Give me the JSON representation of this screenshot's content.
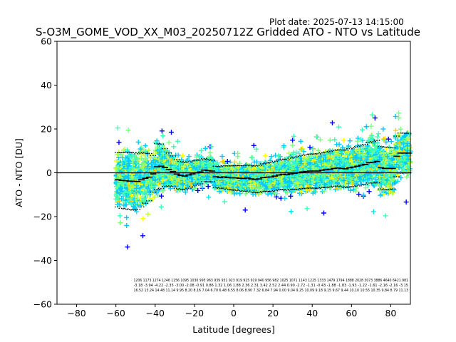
{
  "plot_date": "Plot date: 2025-07-13 14:15:00",
  "chart_data": {
    "type": "scatter",
    "title": "S-O3M_GOME_VOD_XX_M03_20250712Z Gridded ATO - NTO vs Latitude",
    "xlabel": "Latitude [degrees]",
    "ylabel": "ATO - NTO [DU]",
    "xlim": [
      -90,
      90
    ],
    "ylim": [
      -60,
      60
    ],
    "xticks": [
      -80,
      -60,
      -40,
      -20,
      0,
      20,
      40,
      60,
      80
    ],
    "yticks": [
      -60,
      -40,
      -20,
      0,
      20,
      40,
      60
    ],
    "grid": false,
    "legend": "none",
    "zero_line": 0,
    "marker": "+",
    "point_colors": [
      "#00c8ff",
      "#3cffb4",
      "#7dff7d",
      "#beff3c",
      "#ffff00",
      "#0000ff",
      "#00a8ff",
      "#00e5ee",
      "#ffd000"
    ],
    "lat_bins_center": [
      -59,
      -57,
      -55,
      -53,
      -51,
      -49,
      -47,
      -45,
      -43,
      -41,
      -39,
      -37,
      -35,
      -33,
      -31,
      -29,
      -27,
      -25,
      -23,
      -21,
      -19,
      -17,
      -15,
      -13,
      -11,
      -9,
      -7,
      -5,
      -3,
      -1,
      1,
      3,
      5,
      7,
      9,
      11,
      13,
      15,
      17,
      19,
      21,
      23,
      25,
      27,
      29,
      31,
      33,
      35,
      37,
      39,
      41,
      43,
      45,
      47,
      49,
      51,
      53,
      55,
      57,
      59,
      61,
      63,
      65,
      67,
      69,
      71,
      73,
      75,
      77,
      79,
      81,
      83,
      85,
      87,
      89
    ],
    "mean": [
      -3.2,
      -3.5,
      -3.6,
      -3.8,
      -3.9,
      -4.0,
      -3.2,
      -2.5,
      -2.0,
      -0.5,
      2.8,
      3.0,
      2.4,
      1.5,
      0.6,
      -0.6,
      -1.2,
      -1.5,
      -1.0,
      -0.5,
      0.0,
      0.4,
      1.2,
      1.0,
      0.8,
      -1.8,
      -2.1,
      -1.9,
      -2.2,
      -2.3,
      -2.3,
      -2.5,
      -2.6,
      -2.4,
      -2.8,
      -3.0,
      -2.8,
      -2.2,
      -2.0,
      -1.9,
      -1.5,
      -1.0,
      -0.7,
      -0.9,
      -0.5,
      -0.2,
      0.0,
      0.4,
      0.6,
      0.8,
      0.8,
      0.8,
      1.2,
      1.4,
      1.6,
      2.0,
      2.2,
      2.0,
      1.8,
      2.3,
      2.6,
      3.0,
      3.5,
      3.8,
      4.6,
      4.8,
      5.2,
      2.3,
      2.0,
      2.0,
      2.0,
      7.5,
      9.0,
      9.0,
      9.0
    ],
    "std": [
      16.5,
      17.0,
      17.2,
      17.4,
      17.5,
      16.9,
      16.5,
      15.2,
      14.4,
      11.1,
      14.0,
      13.5,
      11.5,
      10.0,
      9.4,
      8.8,
      8.5,
      8.2,
      8.0,
      7.9,
      7.6,
      7.3,
      7.0,
      6.8,
      6.5,
      6.4,
      6.6,
      6.8,
      7.1,
      7.3,
      7.5,
      7.6,
      7.8,
      7.9,
      8.0,
      8.1,
      8.2,
      8.4,
      8.6,
      8.8,
      8.9,
      9.0,
      9.2,
      9.4,
      9.6,
      9.8,
      10.0,
      10.1,
      10.2,
      10.3,
      10.4,
      10.5,
      10.6,
      10.7,
      10.8,
      10.9,
      11.0,
      11.2,
      11.4,
      11.6,
      11.8,
      12.0,
      12.1,
      12.2,
      12.4,
      12.6,
      12.8,
      12.9,
      13.0,
      12.8,
      12.5,
      12.3,
      12.2,
      12.1,
      12.0
    ],
    "bin_annotation_lines": [
      "1206 1173 1274 1246 1156 1095 1030 995 963 939 931 923 919 915 919 940 956 982 1025 1071 1143 1225 1333 1479 1794 1888 2028 3073 3886 4640 6421 981",
      "-3.18 -3.94 -4.22 -2.35 -3.00 -2.08 -0.91 0.86 1.32 1.06 1.88 2.36 2.31 3.42 2.52 2.44 0.90 -2.72 -1.31 -0.43 -1.88 -1.83 -1.93 -1.22 -1.61 -2.16 -2.16 -3.15",
      "16.52 13.24 14.48 11.14 9.95 8.20 8.16 7.04 6.70 6.48 6.55 8.06 8.90 7.32 6.84 7.94 0.00 9.04 9.25 10.09 9.18 9.15 9.67 9.44 10.10 10.55 10.35 9.84 8.79 11.13"
    ]
  }
}
